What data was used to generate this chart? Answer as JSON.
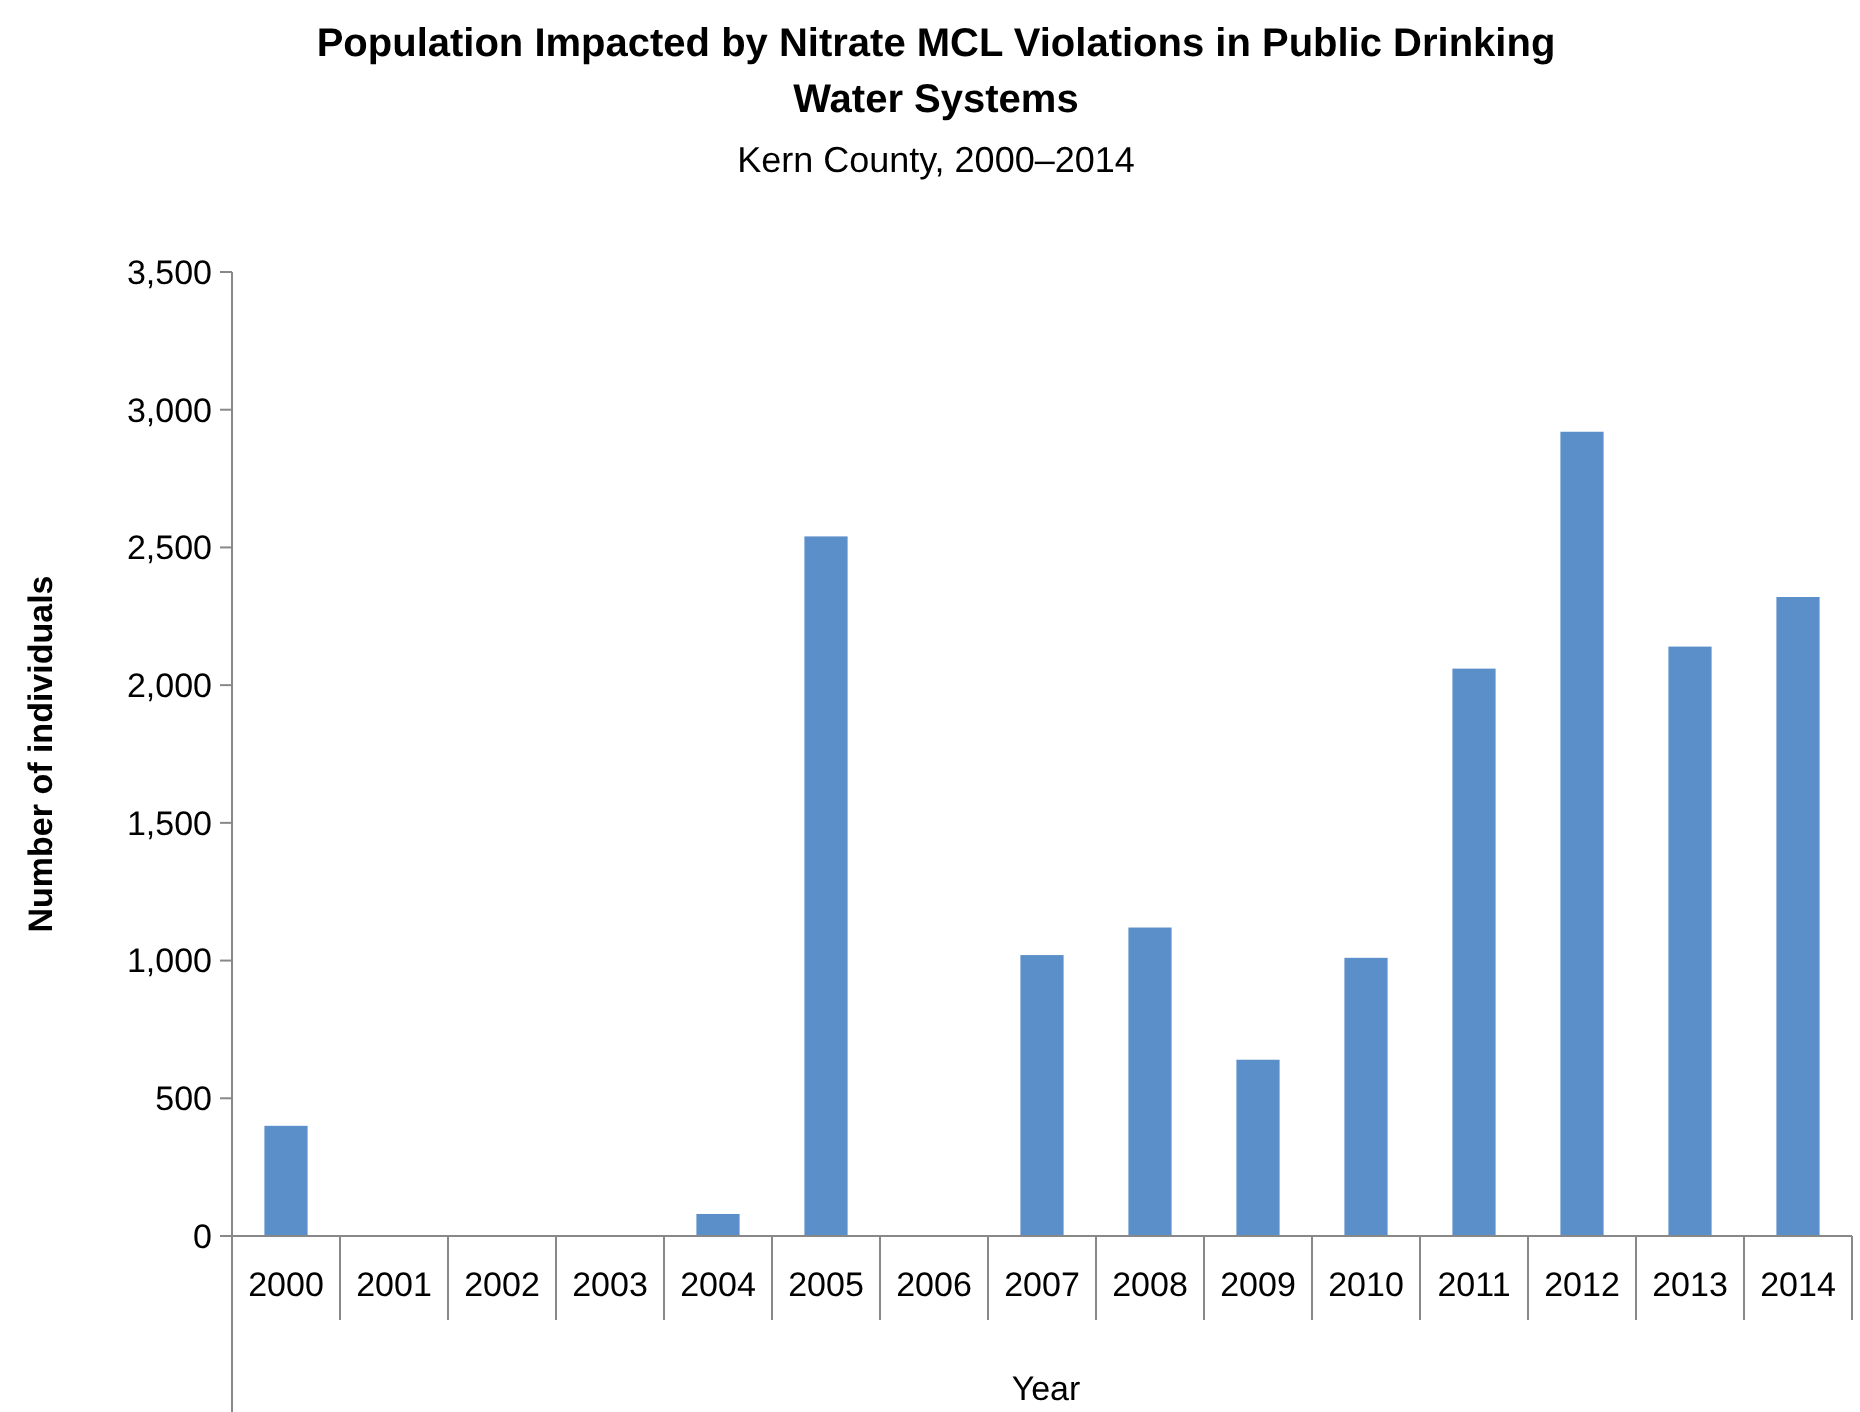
{
  "chart_data": {
    "type": "bar",
    "title": "Population Impacted by Nitrate MCL Violations in Public Drinking Water Systems",
    "subtitle": "Kern County, 2000–2014",
    "xlabel": "Year",
    "ylabel": "Number of individuals",
    "categories": [
      "2000",
      "2001",
      "2002",
      "2003",
      "2004",
      "2005",
      "2006",
      "2007",
      "2008",
      "2009",
      "2010",
      "2011",
      "2012",
      "2013",
      "2014"
    ],
    "values": [
      400,
      0,
      0,
      0,
      80,
      2540,
      0,
      1020,
      1120,
      640,
      1010,
      2060,
      2920,
      2140,
      2320
    ],
    "color": "#5b8fc9",
    "ylim": [
      0,
      3500
    ],
    "yticks": [
      0,
      500,
      {
        "value": 1000,
        "label": "1,000"
      },
      {
        "value": 1500,
        "label": "1,500"
      },
      {
        "value": 2000,
        "label": "2,000"
      },
      {
        "value": 2500,
        "label": "2,500"
      },
      {
        "value": 3000,
        "label": "3,000"
      },
      {
        "value": 3500,
        "label": "3,500"
      }
    ],
    "grid": false
  }
}
